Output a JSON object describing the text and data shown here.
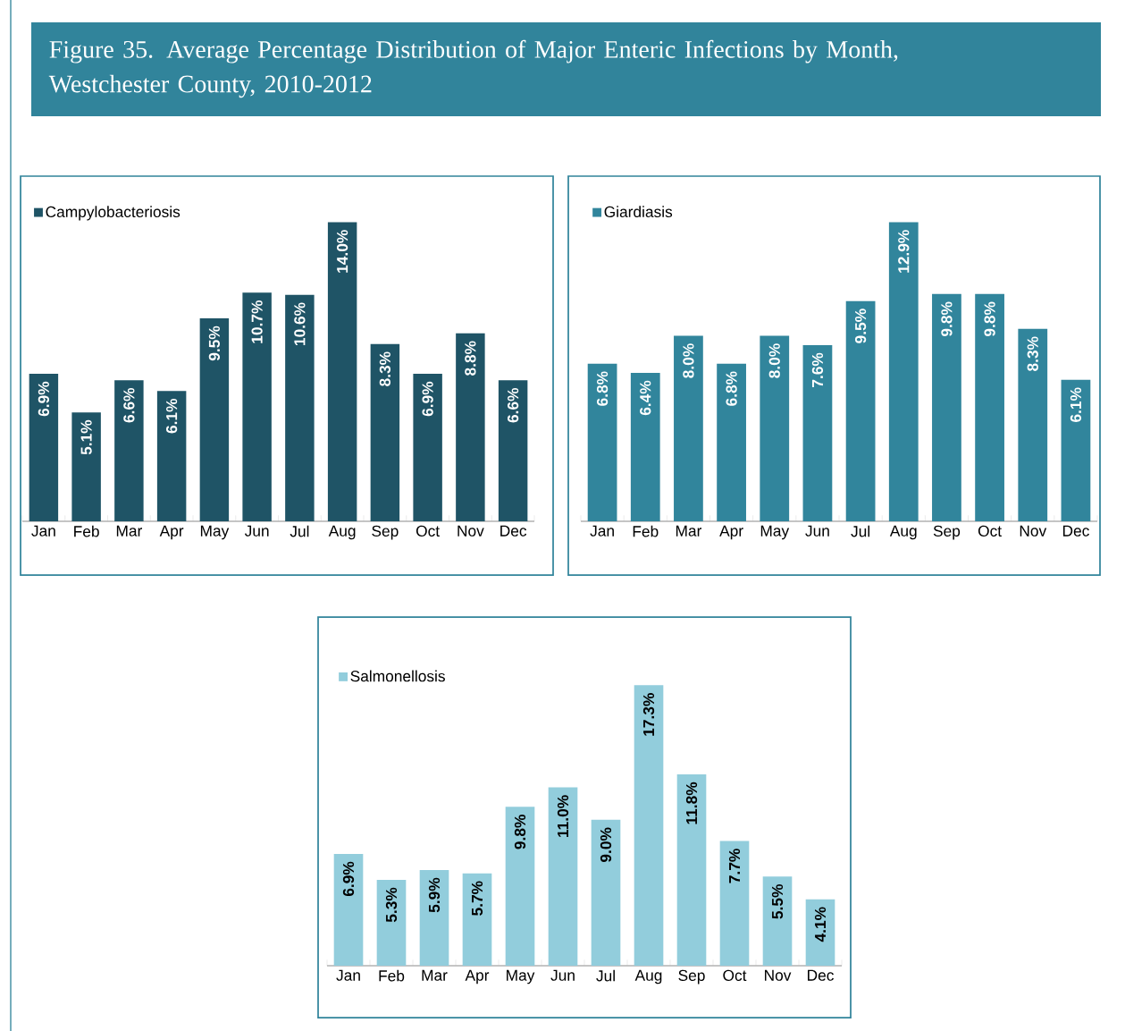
{
  "chart_data": [
    {
      "type": "bar",
      "title": "Figure 35.  Average Percentage Distribution of Major Enteric Infections by Month, Westchester County, 2010-2012",
      "categories": [
        "Jan",
        "Feb",
        "Mar",
        "Apr",
        "May",
        "Jun",
        "Jul",
        "Aug",
        "Sep",
        "Oct",
        "Nov",
        "Dec"
      ],
      "series": [
        {
          "name": "Campylobacteriosis",
          "color": "#1f5466",
          "values": [
            6.9,
            5.1,
            6.6,
            6.1,
            9.5,
            10.7,
            10.6,
            14.0,
            8.3,
            6.9,
            8.8,
            6.6
          ],
          "value_labels": [
            "6.9%",
            "5.1%",
            "6.6%",
            "6.1%",
            "9.5%",
            "10.7%",
            "10.6%",
            "14.0%",
            "8.3%",
            "6.9%",
            "8.8%",
            "6.6%"
          ]
        }
      ],
      "legend": "top left",
      "tick_labels": "x"
    },
    {
      "type": "bar",
      "categories": [
        "Jan",
        "Feb",
        "Mar",
        "Apr",
        "May",
        "Jun",
        "Jul",
        "Aug",
        "Sep",
        "Oct",
        "Nov",
        "Dec"
      ],
      "series": [
        {
          "name": "Giardiasis",
          "color": "#31859c",
          "values": [
            6.8,
            6.4,
            8.0,
            6.8,
            8.0,
            7.6,
            9.5,
            12.9,
            9.8,
            9.8,
            8.3,
            6.1
          ],
          "value_labels": [
            "6.8%",
            "6.4%",
            "8.0%",
            "6.8%",
            "8.0%",
            "7.6%",
            "9.5%",
            "12.9%",
            "9.8%",
            "9.8%",
            "8.3%",
            "6.1%"
          ]
        }
      ],
      "legend": "top left",
      "tick_labels": "x"
    },
    {
      "type": "bar",
      "categories": [
        "Jan",
        "Feb",
        "Mar",
        "Apr",
        "May",
        "Jun",
        "Jul",
        "Aug",
        "Sep",
        "Oct",
        "Nov",
        "Dec"
      ],
      "series": [
        {
          "name": "Salmonellosis",
          "color": "#92cddc",
          "values": [
            6.9,
            5.3,
            5.9,
            5.7,
            9.8,
            11.0,
            9.0,
            17.3,
            11.8,
            7.7,
            5.5,
            4.1
          ],
          "value_labels": [
            "6.9%",
            "5.3%",
            "5.9%",
            "5.7%",
            "9.8%",
            "11.0%",
            "9.0%",
            "17.3%",
            "11.8%",
            "7.7%",
            "5.5%",
            "4.1%"
          ]
        }
      ],
      "legend": "top left",
      "tick_labels": "x"
    }
  ]
}
